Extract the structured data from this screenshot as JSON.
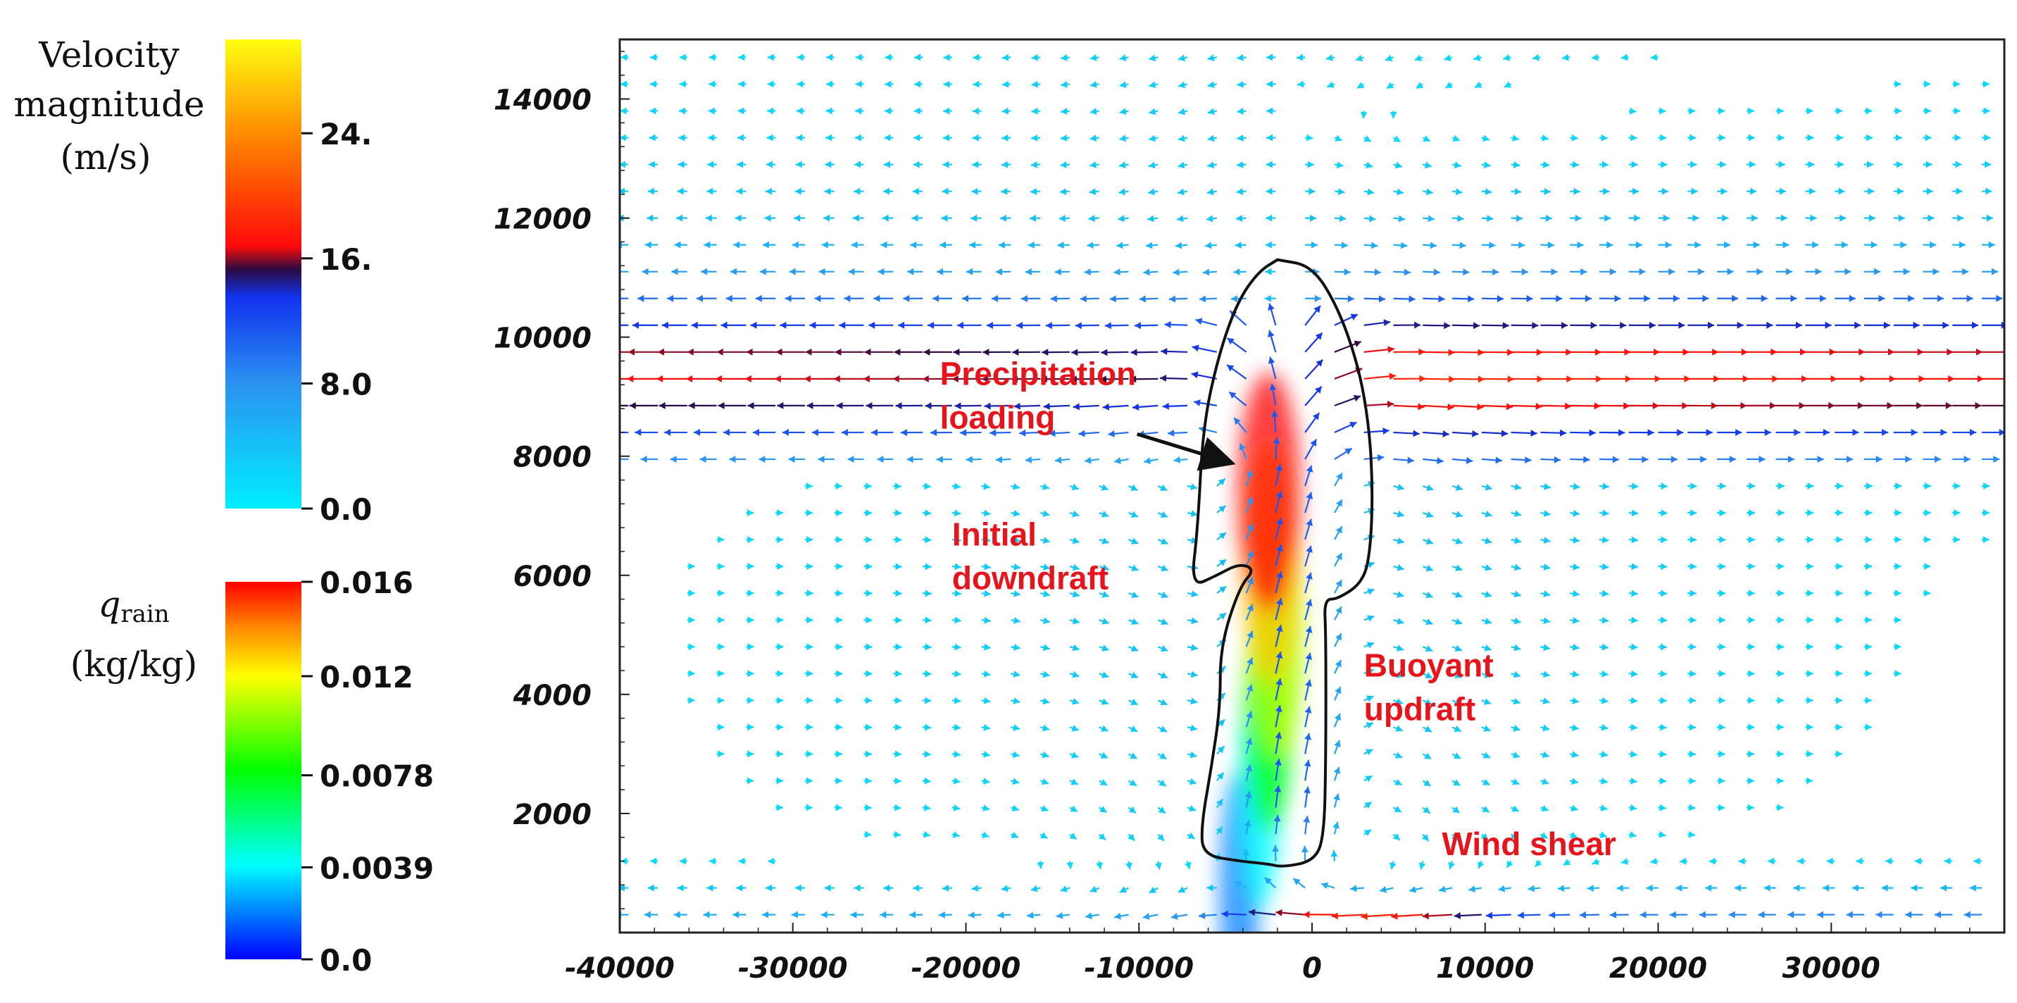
{
  "velocity_colorbar": {
    "title_lines": [
      "Velocity",
      "magnitude",
      "(m/s)"
    ],
    "ticks": [
      {
        "value": 24,
        "label": "24."
      },
      {
        "value": 16,
        "label": "16."
      },
      {
        "value": 8,
        "label": "8.0"
      },
      {
        "value": 0,
        "label": "0.0"
      }
    ],
    "range": [
      0,
      30
    ],
    "stops": [
      {
        "v": 0.0,
        "color": "#00eeff"
      },
      {
        "v": 0.26,
        "color": "#2b95f0"
      },
      {
        "v": 0.45,
        "color": "#1133ee"
      },
      {
        "v": 0.51,
        "color": "#2a0a40"
      },
      {
        "v": 0.56,
        "color": "#ff0a0a"
      },
      {
        "v": 0.8,
        "color": "#ff8c00"
      },
      {
        "v": 1.0,
        "color": "#ffff10"
      }
    ]
  },
  "rain_colorbar": {
    "symbol": "q",
    "subscript": "rain",
    "unit": "(kg/kg)",
    "ticks": [
      {
        "value": 0.016,
        "label": "0.016"
      },
      {
        "value": 0.012,
        "label": "0.012"
      },
      {
        "value": 0.0078,
        "label": "0.0078"
      },
      {
        "value": 0.0039,
        "label": "0.0039"
      },
      {
        "value": 0.0,
        "label": "0.0"
      }
    ],
    "range": [
      0,
      0.016
    ],
    "stops": [
      {
        "v": 0.0,
        "color": "#0000ff"
      },
      {
        "v": 0.25,
        "color": "#00ffff"
      },
      {
        "v": 0.5,
        "color": "#00ff00"
      },
      {
        "v": 0.75,
        "color": "#ffff00"
      },
      {
        "v": 0.88,
        "color": "#ff8800"
      },
      {
        "v": 1.0,
        "color": "#ff0000"
      }
    ]
  },
  "chart_data": {
    "type": "vector-field",
    "title": "",
    "xlabel": "",
    "ylabel": "",
    "xlim": [
      -40000,
      40000
    ],
    "ylim": [
      0,
      15000
    ],
    "xticks": [
      -40000,
      -30000,
      -20000,
      -10000,
      0,
      10000,
      20000,
      30000
    ],
    "xtick_labels": [
      "-40000",
      "-30000",
      "-20000",
      "-10000",
      "0",
      "10000",
      "20000",
      "30000"
    ],
    "yticks": [
      2000,
      4000,
      6000,
      8000,
      10000,
      12000,
      14000
    ],
    "ytick_labels": [
      "2000",
      "4000",
      "6000",
      "8000",
      "10000",
      "12000",
      "14000"
    ],
    "grid": false,
    "cloud_outline": [
      [
        -2000,
        11300
      ],
      [
        0,
        11200
      ],
      [
        1500,
        10500
      ],
      [
        2700,
        9500
      ],
      [
        3300,
        8500
      ],
      [
        3500,
        7500
      ],
      [
        3400,
        6500
      ],
      [
        3000,
        5900
      ],
      [
        1500,
        5600
      ],
      [
        700,
        5600
      ],
      [
        800,
        5000
      ],
      [
        800,
        3000
      ],
      [
        700,
        1600
      ],
      [
        100,
        1200
      ],
      [
        -1700,
        1100
      ],
      [
        -2500,
        1150
      ],
      [
        -4200,
        1200
      ],
      [
        -6300,
        1300
      ],
      [
        -6400,
        1800
      ],
      [
        -5800,
        2800
      ],
      [
        -5300,
        3800
      ],
      [
        -5300,
        4800
      ],
      [
        -4200,
        5800
      ],
      [
        -3300,
        6100
      ],
      [
        -4200,
        6200
      ],
      [
        -5500,
        6000
      ],
      [
        -7000,
        5800
      ],
      [
        -6600,
        6800
      ],
      [
        -6300,
        8500
      ],
      [
        -5400,
        9700
      ],
      [
        -4300,
        10600
      ],
      [
        -3100,
        11100
      ],
      [
        -2000,
        11300
      ]
    ],
    "rain_core": [
      {
        "x": -2500,
        "y": 7400,
        "q": 0.016
      },
      {
        "x": -2400,
        "y": 6200,
        "q": 0.013
      },
      {
        "x": -2000,
        "y": 5000,
        "q": 0.011
      },
      {
        "x": -2500,
        "y": 3700,
        "q": 0.008
      },
      {
        "x": -3000,
        "y": 2400,
        "q": 0.004
      },
      {
        "x": -4200,
        "y": 700,
        "q": 0.002
      }
    ],
    "annotations": [
      {
        "lines": [
          "Precipitation",
          "loading"
        ],
        "x": -21500,
        "y": 9200,
        "arrow_to": [
          -4800,
          7900
        ]
      },
      {
        "lines": [
          "Initial",
          "downdraft"
        ],
        "x": -20800,
        "y": 6500
      },
      {
        "lines": [
          "Buoyant",
          "updraft"
        ],
        "x": 3000,
        "y": 4300
      },
      {
        "lines": [
          "Wind shear"
        ],
        "x": 7500,
        "y": 1300
      }
    ]
  }
}
